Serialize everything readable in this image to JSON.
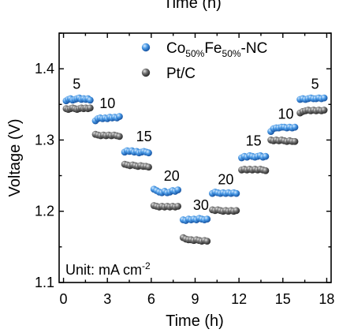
{
  "chart_data": {
    "type": "scatter",
    "top_axis_label": "Time (h)",
    "xlabel": "Time (h)",
    "ylabel": "Voltage (V)",
    "xlim": [
      -0.3,
      18.3
    ],
    "ylim": [
      1.1,
      1.45
    ],
    "x_ticks": [
      "0",
      "3",
      "6",
      "9",
      "12",
      "15",
      "18"
    ],
    "y_ticks": [
      "1.1",
      "1.2",
      "1.3",
      "1.4"
    ],
    "grid": false,
    "legend": "top-right",
    "annotation": {
      "text": "Unit: mA cm",
      "superscript": "-2"
    },
    "step_labels": [
      {
        "text": "5",
        "x": 0.9,
        "y": 1.372
      },
      {
        "text": "10",
        "x": 3.0,
        "y": 1.345
      },
      {
        "text": "15",
        "x": 5.5,
        "y": 1.298
      },
      {
        "text": "20",
        "x": 7.4,
        "y": 1.243
      },
      {
        "text": "30",
        "x": 9.4,
        "y": 1.202
      },
      {
        "text": "20",
        "x": 11.1,
        "y": 1.238
      },
      {
        "text": "15",
        "x": 13.0,
        "y": 1.292
      },
      {
        "text": "10",
        "x": 15.2,
        "y": 1.33
      },
      {
        "text": "5",
        "x": 17.2,
        "y": 1.372
      }
    ],
    "series": [
      {
        "name": "Co50%Fe50%-NC",
        "legend_parts": [
          {
            "t": "Co",
            "sub": false
          },
          {
            "t": "50%",
            "sub": true
          },
          {
            "t": "Fe",
            "sub": false
          },
          {
            "t": "50%",
            "sub": true
          },
          {
            "t": "-NC",
            "sub": false
          }
        ],
        "color": "#3f8fe0",
        "segments": [
          {
            "x_start": 0.0,
            "x_end": 2.0,
            "points": [
              1.355,
              1.357,
              1.358,
              1.356,
              1.357,
              1.358,
              1.359,
              1.357,
              1.358,
              1.357,
              1.358,
              1.356
            ]
          },
          {
            "x_start": 2.0,
            "x_end": 4.0,
            "points": [
              1.327,
              1.33,
              1.331,
              1.33,
              1.331,
              1.33,
              1.332,
              1.331,
              1.332,
              1.331,
              1.333
            ]
          },
          {
            "x_start": 4.0,
            "x_end": 6.0,
            "points": [
              1.283,
              1.285,
              1.284,
              1.285,
              1.283,
              1.284,
              1.282,
              1.283,
              1.284,
              1.283,
              1.282
            ]
          },
          {
            "x_start": 6.0,
            "x_end": 8.0,
            "points": [
              1.231,
              1.229,
              1.227,
              1.226,
              1.228,
              1.226,
              1.227,
              1.229,
              1.228,
              1.23
            ]
          },
          {
            "x_start": 8.0,
            "x_end": 10.0,
            "points": [
              1.188,
              1.187,
              1.189,
              1.188,
              1.189,
              1.188,
              1.19,
              1.189,
              1.188,
              1.189
            ]
          },
          {
            "x_start": 10.0,
            "x_end": 12.0,
            "points": [
              1.225,
              1.227,
              1.226,
              1.225,
              1.226,
              1.225,
              1.226,
              1.225,
              1.226,
              1.225
            ]
          },
          {
            "x_start": 12.0,
            "x_end": 14.0,
            "points": [
              1.275,
              1.277,
              1.276,
              1.278,
              1.277,
              1.276,
              1.277,
              1.278,
              1.276,
              1.277
            ]
          },
          {
            "x_start": 14.0,
            "x_end": 16.0,
            "points": [
              1.312,
              1.316,
              1.317,
              1.317,
              1.318,
              1.318,
              1.317,
              1.318,
              1.317,
              1.318
            ]
          },
          {
            "x_start": 16.0,
            "x_end": 18.0,
            "points": [
              1.357,
              1.358,
              1.357,
              1.358,
              1.359,
              1.358,
              1.358,
              1.359,
              1.358,
              1.359
            ]
          }
        ]
      },
      {
        "name": "Pt/C",
        "legend_parts": [
          {
            "t": "Pt/C",
            "sub": false
          }
        ],
        "color": "#6b6b6b",
        "segments": [
          {
            "x_start": 0.0,
            "x_end": 2.0,
            "points": [
              1.344,
              1.343,
              1.344,
              1.345,
              1.344,
              1.343,
              1.344,
              1.345,
              1.344,
              1.345,
              1.344,
              1.345
            ]
          },
          {
            "x_start": 2.0,
            "x_end": 4.0,
            "points": [
              1.308,
              1.307,
              1.306,
              1.307,
              1.306,
              1.307,
              1.306,
              1.307,
              1.306,
              1.305
            ]
          },
          {
            "x_start": 4.0,
            "x_end": 6.0,
            "points": [
              1.266,
              1.265,
              1.264,
              1.265,
              1.264,
              1.263,
              1.264,
              1.263,
              1.263,
              1.262
            ]
          },
          {
            "x_start": 6.0,
            "x_end": 8.0,
            "points": [
              1.208,
              1.207,
              1.206,
              1.207,
              1.206,
              1.207,
              1.206,
              1.207,
              1.206,
              1.207
            ]
          },
          {
            "x_start": 8.0,
            "x_end": 10.0,
            "points": [
              1.163,
              1.161,
              1.16,
              1.16,
              1.159,
              1.16,
              1.159,
              1.158,
              1.159,
              1.158
            ]
          },
          {
            "x_start": 10.0,
            "x_end": 12.0,
            "points": [
              1.202,
              1.201,
              1.202,
              1.201,
              1.2,
              1.201,
              1.2,
              1.201,
              1.2,
              1.201
            ]
          },
          {
            "x_start": 12.0,
            "x_end": 14.0,
            "points": [
              1.258,
              1.259,
              1.258,
              1.259,
              1.258,
              1.259,
              1.258,
              1.259,
              1.258,
              1.257
            ]
          },
          {
            "x_start": 14.0,
            "x_end": 16.0,
            "points": [
              1.3,
              1.299,
              1.3,
              1.299,
              1.3,
              1.299,
              1.298,
              1.299,
              1.298,
              1.298
            ]
          },
          {
            "x_start": 16.0,
            "x_end": 18.0,
            "points": [
              1.338,
              1.34,
              1.341,
              1.342,
              1.341,
              1.342,
              1.341,
              1.342,
              1.341,
              1.342
            ]
          }
        ]
      }
    ]
  }
}
